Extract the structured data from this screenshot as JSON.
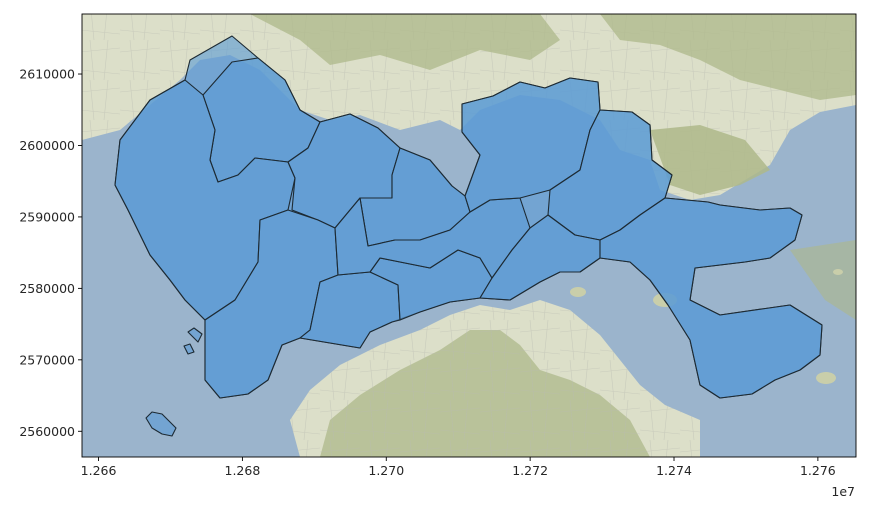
{
  "figure": {
    "type": "map",
    "xlim": [
      12657700.0,
      12765300.0
    ],
    "ylim": [
      2556400,
      2618400
    ],
    "x_ticks": [
      {
        "value": 12660000,
        "label": "1.266"
      },
      {
        "value": 12680000,
        "label": "1.268"
      },
      {
        "value": 12700000,
        "label": "1.270"
      },
      {
        "value": 12720000,
        "label": "1.272"
      },
      {
        "value": 12740000,
        "label": "1.274"
      },
      {
        "value": 12760000,
        "label": "1.276"
      }
    ],
    "y_ticks": [
      {
        "value": 2560000,
        "label": "2560000"
      },
      {
        "value": 2570000,
        "label": "2570000"
      },
      {
        "value": 2580000,
        "label": "2580000"
      },
      {
        "value": 2590000,
        "label": "2590000"
      },
      {
        "value": 2600000,
        "label": "2600000"
      },
      {
        "value": 2610000,
        "label": "2610000"
      }
    ],
    "x_offset_label": "1e7"
  },
  "colors": {
    "sea": "#9bb4cc",
    "land": "#dcdfc9",
    "terrain": "#aeb889",
    "district_fill": "#5b9bd5",
    "district_edge": "#1d2a33",
    "axis": "#000000"
  }
}
